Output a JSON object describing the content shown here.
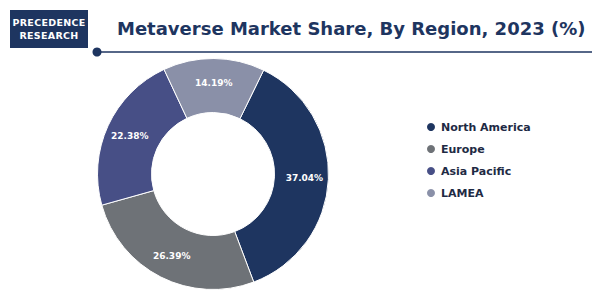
{
  "logo": {
    "lines": [
      "PRECEDENCE",
      "RESEARCH"
    ]
  },
  "chart_data": {
    "type": "pie",
    "title": "Metaverse Market Share, By Region, 2023 (%)",
    "categories": [
      "North America",
      "Europe",
      "Asia Pacific",
      "LAMEA"
    ],
    "values": [
      37.04,
      26.39,
      22.38,
      14.19
    ],
    "value_labels": [
      "37.04%",
      "26.39%",
      "22.38%",
      "14.19%"
    ],
    "colors": [
      "#1e3560",
      "#6e7277",
      "#474f86",
      "#8a90a8"
    ],
    "data_labels": true,
    "legend": "right"
  }
}
